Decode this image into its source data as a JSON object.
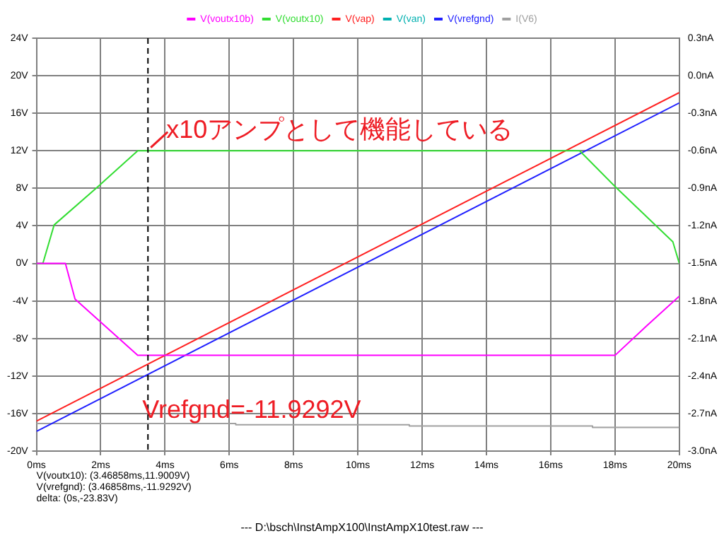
{
  "chart_data": {
    "type": "line",
    "title": "--- D:\\bsch\\InstAmpX100\\InstAmpX10test.raw ---",
    "xlim": [
      0,
      20
    ],
    "xticks": [
      {
        "value": 0,
        "label": "0ms"
      },
      {
        "value": 2,
        "label": "2ms"
      },
      {
        "value": 4,
        "label": "4ms"
      },
      {
        "value": 6,
        "label": "6ms"
      },
      {
        "value": 8,
        "label": "8ms"
      },
      {
        "value": 10,
        "label": "10ms"
      },
      {
        "value": 12,
        "label": "12ms"
      },
      {
        "value": 14,
        "label": "14ms"
      },
      {
        "value": 16,
        "label": "16ms"
      },
      {
        "value": 18,
        "label": "18ms"
      },
      {
        "value": 20,
        "label": "20ms"
      }
    ],
    "ylim": [
      -20,
      24
    ],
    "yticks": [
      {
        "value": -20,
        "label": "-20V"
      },
      {
        "value": -16,
        "label": "-16V"
      },
      {
        "value": -12,
        "label": "-12V"
      },
      {
        "value": -8,
        "label": "-8V"
      },
      {
        "value": -4,
        "label": "-4V"
      },
      {
        "value": 0,
        "label": "0V"
      },
      {
        "value": 4,
        "label": "4V"
      },
      {
        "value": 8,
        "label": "8V"
      },
      {
        "value": 12,
        "label": "12V"
      },
      {
        "value": 16,
        "label": "16V"
      },
      {
        "value": 20,
        "label": "20V"
      },
      {
        "value": 24,
        "label": "24V"
      }
    ],
    "y2lim": [
      -3.0,
      0.3
    ],
    "y2ticks": [
      {
        "value": -3.0,
        "label": "-3.0nA"
      },
      {
        "value": -2.7,
        "label": "-2.7nA"
      },
      {
        "value": -2.4,
        "label": "-2.4nA"
      },
      {
        "value": -2.1,
        "label": "-2.1nA"
      },
      {
        "value": -1.8,
        "label": "-1.8nA"
      },
      {
        "value": -1.5,
        "label": "-1.5nA"
      },
      {
        "value": -1.2,
        "label": "-1.2nA"
      },
      {
        "value": -0.9,
        "label": "-0.9nA"
      },
      {
        "value": -0.6,
        "label": "-0.6nA"
      },
      {
        "value": -0.3,
        "label": "-0.3nA"
      },
      {
        "value": 0.0,
        "label": "0.0nA"
      },
      {
        "value": 0.3,
        "label": "0.3nA"
      }
    ],
    "grid": true,
    "legend": "top",
    "marker": "none",
    "series": [
      {
        "name": "V(voutx10b)",
        "color": "#ff00ff",
        "x": [
          0,
          0.9,
          1.2,
          3.15,
          18.0,
          19.0,
          20
        ],
        "values": [
          0,
          0,
          -3.8,
          -9.8,
          -9.8,
          -6.6,
          -3.5
        ]
      },
      {
        "name": "V(voutx10)",
        "color": "#33dd33",
        "x": [
          0,
          0.2,
          0.55,
          1.95,
          3.15,
          16.9,
          18.0,
          19.8,
          20
        ],
        "values": [
          0,
          0,
          4.1,
          8.3,
          12,
          12,
          8.2,
          2.3,
          0
        ]
      },
      {
        "name": "V(vap)",
        "color": "#ff2020",
        "x": [
          0,
          20
        ],
        "values": [
          -16.8,
          18.2
        ]
      },
      {
        "name": "V(van)",
        "color": "#00b0b0"
      },
      {
        "name": "V(vrefgnd)",
        "color": "#2020ff",
        "x": [
          0,
          20
        ],
        "values": [
          -17.9,
          17.1
        ]
      },
      {
        "name": "I(V6)",
        "type": "step",
        "axis": "y2",
        "color": "#a0a0a0",
        "x": [
          0,
          6.2,
          11.6,
          17.3,
          20
        ],
        "values": [
          -2.78,
          -2.79,
          -2.8,
          -2.81,
          -2.81
        ]
      }
    ],
    "ref_lines": [
      {
        "axis": "x",
        "value": 3.46858,
        "color": "#000000",
        "line_style": "dashed"
      }
    ],
    "annotations": [
      {
        "text": "x10アンプとして機能している",
        "x": 3.46858,
        "y": 11.9009
      },
      {
        "text": "Vrefgnd=-11.9292V",
        "x": 3.46858,
        "y": -11.9292
      },
      "V(voutx10): (3.46858ms,11.9009V)",
      "V(vrefgnd): (3.46858ms,-11.9292V)",
      "delta: (0s,-23.83V)"
    ]
  }
}
